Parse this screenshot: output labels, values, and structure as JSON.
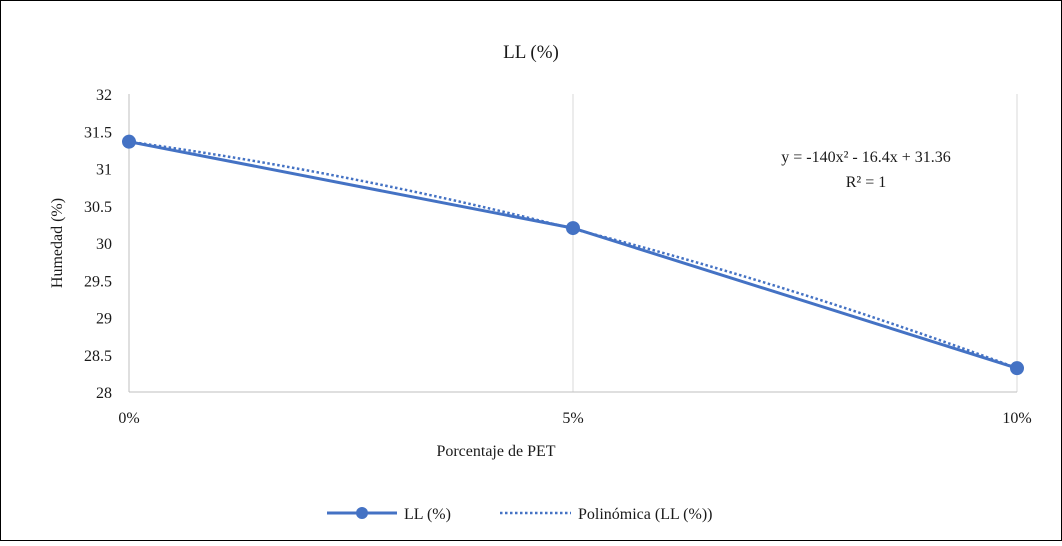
{
  "chart_data": {
    "type": "line",
    "title": "LL (%)",
    "xlabel": "Porcentaje de PET",
    "ylabel": "Humedad (%)",
    "categories": [
      "0%",
      "5%",
      "10%"
    ],
    "x": [
      0,
      0.05,
      0.1
    ],
    "ylim": [
      28,
      32
    ],
    "yticks": [
      28,
      28.5,
      29,
      29.5,
      30,
      30.5,
      31,
      31.5,
      32
    ],
    "grid": "vertical",
    "legend_position": "bottom",
    "series": [
      {
        "name": "LL (%)",
        "values": [
          31.36,
          30.2,
          28.32
        ],
        "color": "#4472c4",
        "style": "solid-markers"
      }
    ],
    "trendline": {
      "name": "Polinómica (LL (%))",
      "type": "polynomial",
      "coefficients": {
        "a": -140,
        "b": -16.4,
        "c": 31.36
      },
      "equation": "y = -140x² - 16.4x + 31.36",
      "r_squared": "R² = 1",
      "color": "#4472c4",
      "style": "dotted"
    }
  }
}
